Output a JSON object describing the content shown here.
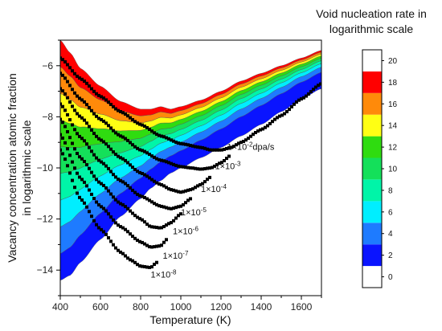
{
  "chart_data": {
    "type": "contour",
    "xlabel": "Temperature (K)",
    "ylabel_lines": [
      "Vacancy concentration atomic fraction",
      "in logarithmic scale"
    ],
    "xlim": [
      400,
      1700
    ],
    "ylim": [
      -15,
      -5
    ],
    "xticks": [
      400,
      600,
      800,
      1000,
      1200,
      1400,
      1600
    ],
    "yticks": [
      -14,
      -12,
      -10,
      -8,
      -6
    ],
    "colorbar": {
      "title_lines": [
        "Void nucleation rate in",
        "logarithmic scale"
      ],
      "levels": [
        0,
        2,
        4,
        6,
        8,
        10,
        12,
        14,
        16,
        18,
        20
      ],
      "colors": [
        "#ffffff",
        "#0a14ff",
        "#1e7bff",
        "#00eeff",
        "#00f5a8",
        "#14e05a",
        "#2fdc10",
        "#ffff14",
        "#ff8a0a",
        "#ff0000",
        "#ffffff"
      ]
    },
    "band_colors": [
      "#0a14ff",
      "#1e7bff",
      "#00eeff",
      "#00f5a8",
      "#14e05a",
      "#2fdc10",
      "#ffff14",
      "#ff8a0a",
      "#ff0000"
    ],
    "band_boundaries": {
      "x": [
        400,
        450,
        500,
        600,
        700,
        800,
        850,
        900,
        950,
        1000,
        1100,
        1200,
        1300,
        1400,
        1500,
        1600,
        1700
      ],
      "upper_edge": [
        -5.0,
        -5.5,
        -6.1,
        -6.8,
        -7.4,
        -7.7,
        -7.7,
        -7.6,
        -7.7,
        -7.6,
        -7.35,
        -7.0,
        -6.6,
        -6.3,
        -6.0,
        -5.7,
        -5.4
      ],
      "lower_edge": [
        -14.4,
        -14.2,
        -13.7,
        -12.8,
        -11.9,
        -11.2,
        -10.8,
        -10.5,
        -10.2,
        -10.0,
        -9.6,
        -9.2,
        -8.75,
        -8.3,
        -7.8,
        -7.3,
        -6.9
      ]
    },
    "series": [
      {
        "name": "1×10⁻²dpa/s",
        "label": "1×10",
        "sup": "-2",
        "suffix": "dpa/s",
        "x": [
          400,
          500,
          600,
          700,
          800,
          900,
          1000,
          1100,
          1150,
          1200,
          1250,
          1300,
          1400,
          1500,
          1600,
          1700
        ],
        "y": [
          -5.7,
          -6.5,
          -7.2,
          -7.8,
          -8.3,
          -8.75,
          -9.05,
          -9.2,
          -9.3,
          -9.3,
          -9.2,
          -9.0,
          -8.5,
          -7.95,
          -7.3,
          -6.7
        ]
      },
      {
        "name": "1×10⁻³",
        "label": "1×10",
        "sup": "-3",
        "suffix": "",
        "x": [
          400,
          500,
          600,
          700,
          800,
          900,
          1000,
          1050,
          1100,
          1150,
          1200,
          1250
        ],
        "y": [
          -6.3,
          -7.3,
          -8.1,
          -8.75,
          -9.3,
          -9.7,
          -9.95,
          -10.0,
          -10.05,
          -10.0,
          -9.8,
          -9.5
        ]
      },
      {
        "name": "1×10⁻⁴",
        "label": "1×10",
        "sup": "-4",
        "suffix": "",
        "x": [
          400,
          500,
          600,
          700,
          800,
          900,
          950,
          1000,
          1050,
          1100,
          1150
        ],
        "y": [
          -6.9,
          -8.0,
          -8.9,
          -9.6,
          -10.2,
          -10.65,
          -10.85,
          -10.95,
          -10.85,
          -10.65,
          -10.35
        ]
      },
      {
        "name": "1×10⁻⁵",
        "label": "1×10",
        "sup": "-5",
        "suffix": "",
        "x": [
          400,
          500,
          600,
          700,
          800,
          900,
          950,
          1000,
          1050
        ],
        "y": [
          -7.5,
          -8.8,
          -9.75,
          -10.5,
          -11.1,
          -11.5,
          -11.6,
          -11.5,
          -11.2
        ]
      },
      {
        "name": "1×10⁻⁶",
        "label": "1×10",
        "sup": "-6",
        "suffix": "",
        "x": [
          400,
          500,
          600,
          700,
          800,
          850,
          900,
          950,
          1000
        ],
        "y": [
          -8.1,
          -9.6,
          -10.6,
          -11.4,
          -12.0,
          -12.3,
          -12.35,
          -12.15,
          -11.8
        ]
      },
      {
        "name": "1×10⁻⁷",
        "label": "1×10",
        "sup": "-7",
        "suffix": "",
        "x": [
          400,
          500,
          600,
          700,
          800,
          850,
          900,
          930
        ],
        "y": [
          -8.7,
          -10.4,
          -11.5,
          -12.3,
          -12.9,
          -13.1,
          -13.05,
          -12.8
        ]
      },
      {
        "name": "1×10⁻⁸",
        "label": "1×10",
        "sup": "-8",
        "suffix": "",
        "x": [
          400,
          500,
          600,
          700,
          750,
          800,
          850,
          880
        ],
        "y": [
          -9.3,
          -11.2,
          -12.4,
          -13.3,
          -13.6,
          -13.85,
          -13.9,
          -13.7
        ]
      }
    ],
    "series_label_positions": [
      {
        "x": 1230,
        "y": -9.3
      },
      {
        "x": 1170,
        "y": -10.05
      },
      {
        "x": 1100,
        "y": -10.95
      },
      {
        "x": 1000,
        "y": -11.85
      },
      {
        "x": 960,
        "y": -12.6
      },
      {
        "x": 910,
        "y": -13.55
      },
      {
        "x": 850,
        "y": -14.3
      }
    ]
  }
}
